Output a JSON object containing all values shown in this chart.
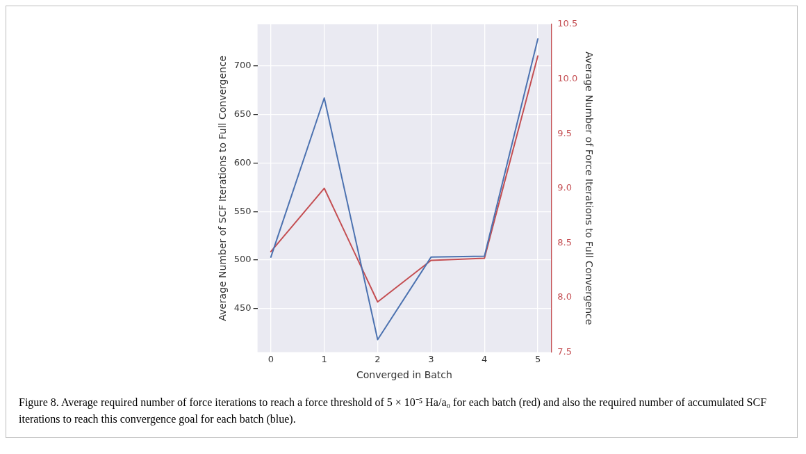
{
  "chart_data": {
    "type": "line",
    "xlabel": "Converged in Batch",
    "ylabel": "Average Number of SCF Iterations to Full Convergence",
    "y2label": "Average Number of Force Iterations to Full Convergence",
    "x": [
      0,
      1,
      2,
      3,
      4,
      5
    ],
    "xlim": [
      -0.25,
      5.25
    ],
    "xticks": [
      0,
      1,
      2,
      3,
      4,
      5
    ],
    "ylim": [
      405,
      743
    ],
    "yticks": [
      450,
      500,
      550,
      600,
      650,
      700
    ],
    "y2lim": [
      7.5,
      10.5
    ],
    "y2ticks": [
      {
        "value": 7.5,
        "label": "7.5"
      },
      {
        "value": 8,
        "label": "8.0"
      },
      {
        "value": 8.5,
        "label": "8.5"
      },
      {
        "value": 9,
        "label": "9.0"
      },
      {
        "value": 9.5,
        "label": "9.5"
      },
      {
        "value": 10,
        "label": "10.0"
      },
      {
        "value": 10.5,
        "label": "10.5"
      }
    ],
    "grid": true,
    "marker": "none",
    "line_style": "solid",
    "series": [
      {
        "color": "#4c72b0",
        "values": [
          503,
          667,
          418,
          503,
          504,
          728
        ]
      },
      {
        "color": "#c44e52",
        "axis": "y2",
        "values": [
          8.42,
          9.0,
          7.96,
          8.34,
          8.36,
          10.21
        ]
      }
    ],
    "annotations": [
      "Figure 8. Average required number of force iterations to reach a force threshold of 5 × 10⁻⁵ Ha/a₀ for each batch (red) and also the required number of accumulated SCF iterations to reach this convergence goal for each batch (blue)."
    ]
  }
}
